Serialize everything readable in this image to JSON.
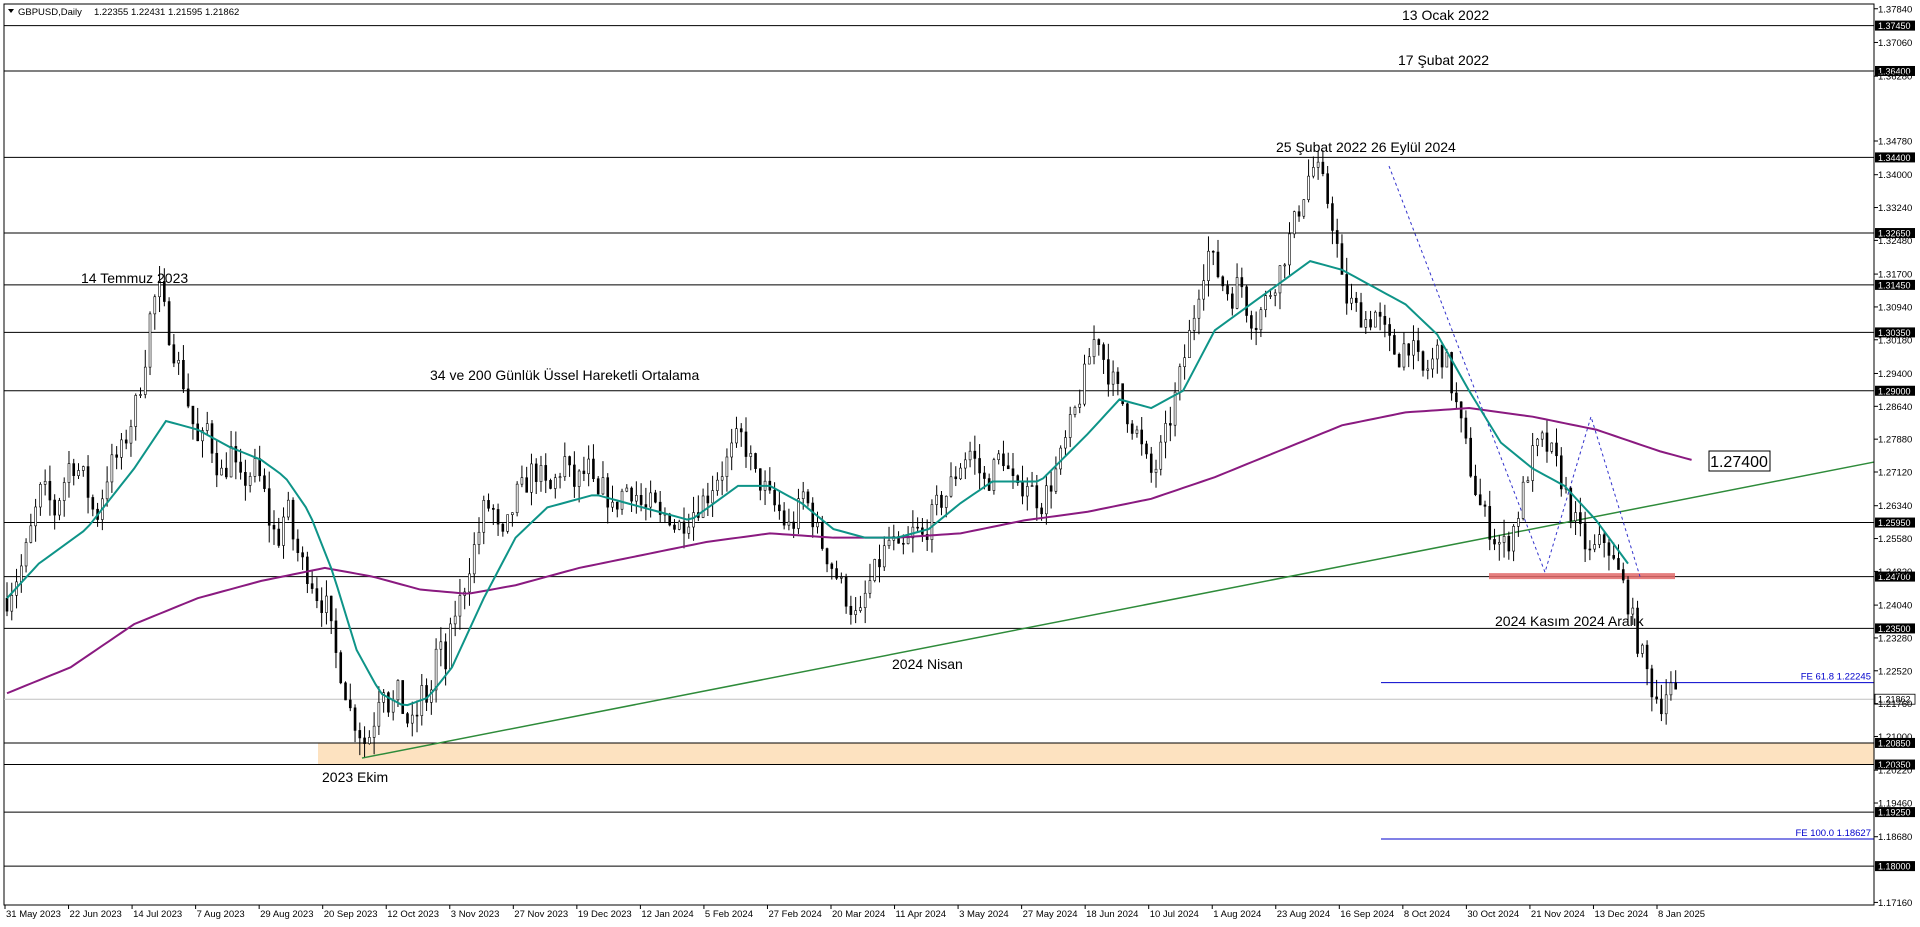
{
  "header": {
    "symbol": "GBPUSD,Daily",
    "ohlc": "1.22355 1.22431 1.21595 1.21862"
  },
  "colors": {
    "ema34": "#0e9488",
    "ema200": "#8a1a80",
    "trendline": "#2e8b3a",
    "fib_line": "#0000cc",
    "zone_fill": "#fde2c0",
    "resistance_band": "#e06868",
    "zigzag": "#3333cc"
  },
  "chart_data": {
    "type": "candlestick",
    "ylim": [
      1.171,
      1.3795
    ],
    "y_ticks": [
      "1.37840",
      "1.37060",
      "1.36280",
      "1.34780",
      "1.34000",
      "1.33240",
      "1.32480",
      "1.31700",
      "1.30940",
      "1.30180",
      "1.29400",
      "1.28640",
      "1.27880",
      "1.27120",
      "1.26340",
      "1.25580",
      "1.24820",
      "1.24040",
      "1.23280",
      "1.22520",
      "1.21760",
      "1.21000",
      "1.20220",
      "1.19460",
      "1.18680",
      "1.17160"
    ],
    "x_ticks": [
      "31 May 2023",
      "22 Jun 2023",
      "14 Jul 2023",
      "7 Aug 2023",
      "29 Aug 2023",
      "20 Sep 2023",
      "12 Oct 2023",
      "3 Nov 2023",
      "27 Nov 2023",
      "19 Dec 2023",
      "12 Jan 2024",
      "5 Feb 2024",
      "27 Feb 2024",
      "20 Mar 2024",
      "11 Apr 2024",
      "3 May 2024",
      "27 May 2024",
      "18 Jun 2024",
      "10 Jul 2024",
      "1 Aug 2024",
      "23 Aug 2024",
      "16 Sep 2024",
      "8 Oct 2024",
      "30 Oct 2024",
      "21 Nov 2024",
      "13 Dec 2024",
      "8 Jan 2025"
    ],
    "last_price": "1.21862",
    "horizontal_levels": [
      {
        "price": 1.3745,
        "label": "1.37450"
      },
      {
        "price": 1.364,
        "label": "1.36400"
      },
      {
        "price": 1.344,
        "label": "1.34400"
      },
      {
        "price": 1.3265,
        "label": "1.32650"
      },
      {
        "price": 1.3145,
        "label": "1.31450"
      },
      {
        "price": 1.3035,
        "label": "1.30350"
      },
      {
        "price": 1.29,
        "label": "1.29000"
      },
      {
        "price": 1.2595,
        "label": "1.25950"
      },
      {
        "price": 1.247,
        "label": "1.24700"
      },
      {
        "price": 1.235,
        "label": "1.23500"
      },
      {
        "price": 1.2085,
        "label": "1.20850"
      },
      {
        "price": 1.2035,
        "label": "1.20350"
      },
      {
        "price": 1.1925,
        "label": "1.19250"
      },
      {
        "price": 1.18,
        "label": "1.18000"
      }
    ],
    "fib_levels": [
      {
        "price": 1.22245,
        "label": "FE 61.8 1.22245"
      },
      {
        "price": 1.18627,
        "label": "FE 100.0 1.18627"
      }
    ],
    "support_zone": [
      1.2035,
      1.2085
    ],
    "ema_label": "1.27400",
    "annotations": [
      {
        "id": "ann-13-ocak-2022",
        "text": "13 Ocak 2022"
      },
      {
        "id": "ann-17-subat-2022",
        "text": "17 Şubat 2022"
      },
      {
        "id": "ann-25-subat-2022",
        "text": "25 Şubat 2022  26 Eylül 2024"
      },
      {
        "id": "ann-14-temmuz-2023",
        "text": "14 Temmuz 2023"
      },
      {
        "id": "ann-ema-title",
        "text": "34 ve 200 Günlük Üssel Hareketli Ortalama"
      },
      {
        "id": "ann-2024-kasim",
        "text": "2024 Kasım  2024 Aralık"
      },
      {
        "id": "ann-2024-nisan",
        "text": "2024 Nisan"
      },
      {
        "id": "ann-2023-ekim",
        "text": "2023 Ekim"
      }
    ],
    "price_path": [
      [
        0,
        1.242
      ],
      [
        10,
        1.25
      ],
      [
        22,
        1.268
      ],
      [
        30,
        1.262
      ],
      [
        40,
        1.274
      ],
      [
        48,
        1.27
      ],
      [
        56,
        1.26
      ],
      [
        64,
        1.272
      ],
      [
        72,
        1.276
      ],
      [
        80,
        1.285
      ],
      [
        86,
        1.295
      ],
      [
        91,
        1.31
      ],
      [
        96,
        1.313
      ],
      [
        101,
        1.305
      ],
      [
        106,
        1.298
      ],
      [
        111,
        1.292
      ],
      [
        116,
        1.284
      ],
      [
        121,
        1.276
      ],
      [
        126,
        1.282
      ],
      [
        131,
        1.274
      ],
      [
        136,
        1.27
      ],
      [
        141,
        1.276
      ],
      [
        146,
        1.268
      ],
      [
        151,
        1.27
      ],
      [
        156,
        1.272
      ],
      [
        161,
        1.268
      ],
      [
        166,
        1.258
      ],
      [
        171,
        1.256
      ],
      [
        176,
        1.264
      ],
      [
        181,
        1.254
      ],
      [
        186,
        1.25
      ],
      [
        191,
        1.247
      ],
      [
        196,
        1.242
      ],
      [
        201,
        1.24
      ],
      [
        206,
        1.23
      ],
      [
        211,
        1.224
      ],
      [
        216,
        1.216
      ],
      [
        221,
        1.212
      ],
      [
        226,
        1.208
      ],
      [
        231,
        1.214
      ],
      [
        236,
        1.224
      ],
      [
        241,
        1.216
      ],
      [
        246,
        1.22
      ],
      [
        251,
        1.214
      ],
      [
        256,
        1.212
      ],
      [
        261,
        1.22
      ],
      [
        266,
        1.218
      ],
      [
        271,
        1.232
      ],
      [
        276,
        1.226
      ],
      [
        281,
        1.238
      ],
      [
        286,
        1.242
      ],
      [
        291,
        1.25
      ],
      [
        296,
        1.256
      ],
      [
        301,
        1.264
      ],
      [
        306,
        1.262
      ],
      [
        311,
        1.254
      ],
      [
        316,
        1.26
      ],
      [
        321,
        1.266
      ],
      [
        326,
        1.268
      ],
      [
        331,
        1.272
      ],
      [
        336,
        1.27
      ],
      [
        341,
        1.266
      ],
      [
        346,
        1.27
      ],
      [
        351,
        1.274
      ],
      [
        356,
        1.268
      ],
      [
        361,
        1.27
      ],
      [
        366,
        1.272
      ],
      [
        371,
        1.264
      ],
      [
        376,
        1.268
      ],
      [
        381,
        1.262
      ],
      [
        386,
        1.266
      ],
      [
        391,
        1.268
      ],
      [
        396,
        1.266
      ],
      [
        401,
        1.262
      ],
      [
        406,
        1.264
      ],
      [
        411,
        1.26
      ],
      [
        416,
        1.262
      ],
      [
        421,
        1.258
      ],
      [
        426,
        1.26
      ],
      [
        431,
        1.262
      ],
      [
        436,
        1.264
      ],
      [
        441,
        1.266
      ],
      [
        446,
        1.27
      ],
      [
        451,
        1.272
      ],
      [
        456,
        1.276
      ],
      [
        461,
        1.28
      ],
      [
        466,
        1.276
      ],
      [
        471,
        1.27
      ],
      [
        476,
        1.268
      ],
      [
        481,
        1.264
      ],
      [
        486,
        1.262
      ],
      [
        491,
        1.258
      ],
      [
        496,
        1.26
      ],
      [
        501,
        1.266
      ],
      [
        506,
        1.262
      ],
      [
        511,
        1.256
      ],
      [
        516,
        1.252
      ],
      [
        521,
        1.248
      ],
      [
        526,
        1.244
      ],
      [
        531,
        1.24
      ],
      [
        536,
        1.236
      ],
      [
        541,
        1.244
      ],
      [
        546,
        1.248
      ],
      [
        551,
        1.252
      ],
      [
        556,
        1.256
      ],
      [
        561,
        1.252
      ],
      [
        566,
        1.254
      ],
      [
        571,
        1.258
      ],
      [
        576,
        1.256
      ],
      [
        581,
        1.26
      ],
      [
        586,
        1.264
      ],
      [
        591,
        1.266
      ],
      [
        596,
        1.27
      ],
      [
        601,
        1.274
      ],
      [
        606,
        1.276
      ],
      [
        611,
        1.272
      ],
      [
        616,
        1.268
      ],
      [
        621,
        1.272
      ],
      [
        626,
        1.276
      ],
      [
        631,
        1.27
      ],
      [
        636,
        1.266
      ],
      [
        641,
        1.27
      ],
      [
        646,
        1.266
      ],
      [
        651,
        1.264
      ],
      [
        656,
        1.268
      ],
      [
        661,
        1.272
      ],
      [
        666,
        1.278
      ],
      [
        671,
        1.284
      ],
      [
        676,
        1.29
      ],
      [
        681,
        1.298
      ],
      [
        686,
        1.304
      ],
      [
        691,
        1.296
      ],
      [
        696,
        1.292
      ],
      [
        701,
        1.288
      ],
      [
        706,
        1.284
      ],
      [
        711,
        1.28
      ],
      [
        716,
        1.274
      ],
      [
        721,
        1.27
      ],
      [
        726,
        1.276
      ],
      [
        731,
        1.282
      ],
      [
        736,
        1.29
      ],
      [
        741,
        1.298
      ],
      [
        746,
        1.306
      ],
      [
        751,
        1.316
      ],
      [
        756,
        1.322
      ],
      [
        761,
        1.318
      ],
      [
        766,
        1.314
      ],
      [
        771,
        1.312
      ],
      [
        776,
        1.316
      ],
      [
        781,
        1.308
      ],
      [
        786,
        1.306
      ],
      [
        791,
        1.31
      ],
      [
        796,
        1.314
      ],
      [
        801,
        1.318
      ],
      [
        806,
        1.324
      ],
      [
        811,
        1.33
      ],
      [
        816,
        1.336
      ],
      [
        821,
        1.342
      ],
      [
        826,
        1.34
      ],
      [
        831,
        1.334
      ],
      [
        836,
        1.326
      ],
      [
        841,
        1.312
      ],
      [
        846,
        1.31
      ],
      [
        851,
        1.308
      ],
      [
        856,
        1.306
      ],
      [
        861,
        1.308
      ],
      [
        866,
        1.304
      ],
      [
        871,
        1.3
      ],
      [
        876,
        1.298
      ],
      [
        881,
        1.302
      ],
      [
        886,
        1.298
      ],
      [
        891,
        1.294
      ],
      [
        896,
        1.296
      ],
      [
        901,
        1.3
      ],
      [
        906,
        1.296
      ],
      [
        911,
        1.288
      ],
      [
        916,
        1.28
      ],
      [
        921,
        1.272
      ],
      [
        926,
        1.264
      ],
      [
        931,
        1.26
      ],
      [
        936,
        1.256
      ],
      [
        941,
        1.254
      ],
      [
        946,
        1.256
      ],
      [
        951,
        1.262
      ],
      [
        956,
        1.27
      ],
      [
        961,
        1.276
      ],
      [
        966,
        1.278
      ],
      [
        971,
        1.276
      ],
      [
        976,
        1.272
      ],
      [
        981,
        1.266
      ],
      [
        986,
        1.26
      ],
      [
        991,
        1.256
      ],
      [
        996,
        1.252
      ],
      [
        1001,
        1.254
      ],
      [
        1006,
        1.256
      ],
      [
        1011,
        1.25
      ],
      [
        1016,
        1.246
      ],
      [
        1021,
        1.24
      ],
      [
        1026,
        1.232
      ],
      [
        1031,
        1.226
      ],
      [
        1036,
        1.22
      ],
      [
        1041,
        1.218
      ],
      [
        1046,
        1.222
      ],
      [
        1050,
        1.2186
      ]
    ],
    "ema34_path": [
      [
        0,
        1.242
      ],
      [
        20,
        1.25
      ],
      [
        50,
        1.258
      ],
      [
        80,
        1.272
      ],
      [
        100,
        1.283
      ],
      [
        120,
        1.281
      ],
      [
        140,
        1.277
      ],
      [
        160,
        1.274
      ],
      [
        175,
        1.27
      ],
      [
        190,
        1.262
      ],
      [
        205,
        1.248
      ],
      [
        220,
        1.23
      ],
      [
        235,
        1.22
      ],
      [
        250,
        1.217
      ],
      [
        265,
        1.219
      ],
      [
        280,
        1.226
      ],
      [
        300,
        1.242
      ],
      [
        320,
        1.256
      ],
      [
        340,
        1.263
      ],
      [
        370,
        1.266
      ],
      [
        400,
        1.263
      ],
      [
        430,
        1.26
      ],
      [
        460,
        1.268
      ],
      [
        480,
        1.268
      ],
      [
        500,
        1.264
      ],
      [
        520,
        1.258
      ],
      [
        540,
        1.256
      ],
      [
        560,
        1.256
      ],
      [
        580,
        1.258
      ],
      [
        600,
        1.264
      ],
      [
        620,
        1.269
      ],
      [
        650,
        1.269
      ],
      [
        680,
        1.28
      ],
      [
        700,
        1.288
      ],
      [
        720,
        1.286
      ],
      [
        740,
        1.29
      ],
      [
        760,
        1.304
      ],
      [
        790,
        1.312
      ],
      [
        820,
        1.32
      ],
      [
        840,
        1.318
      ],
      [
        860,
        1.314
      ],
      [
        880,
        1.31
      ],
      [
        900,
        1.303
      ],
      [
        920,
        1.29
      ],
      [
        940,
        1.278
      ],
      [
        960,
        1.272
      ],
      [
        980,
        1.268
      ],
      [
        1000,
        1.26
      ],
      [
        1020,
        1.25
      ]
    ],
    "ema200_path": [
      [
        0,
        1.22
      ],
      [
        40,
        1.226
      ],
      [
        80,
        1.236
      ],
      [
        120,
        1.242
      ],
      [
        160,
        1.246
      ],
      [
        200,
        1.249
      ],
      [
        230,
        1.247
      ],
      [
        260,
        1.244
      ],
      [
        290,
        1.243
      ],
      [
        320,
        1.245
      ],
      [
        360,
        1.249
      ],
      [
        400,
        1.252
      ],
      [
        440,
        1.255
      ],
      [
        480,
        1.257
      ],
      [
        520,
        1.256
      ],
      [
        560,
        1.256
      ],
      [
        600,
        1.257
      ],
      [
        640,
        1.26
      ],
      [
        680,
        1.262
      ],
      [
        720,
        1.265
      ],
      [
        760,
        1.27
      ],
      [
        800,
        1.276
      ],
      [
        840,
        1.282
      ],
      [
        880,
        1.285
      ],
      [
        920,
        1.286
      ],
      [
        960,
        1.284
      ],
      [
        1000,
        1.281
      ],
      [
        1040,
        1.276
      ],
      [
        1060,
        1.274
      ]
    ]
  }
}
